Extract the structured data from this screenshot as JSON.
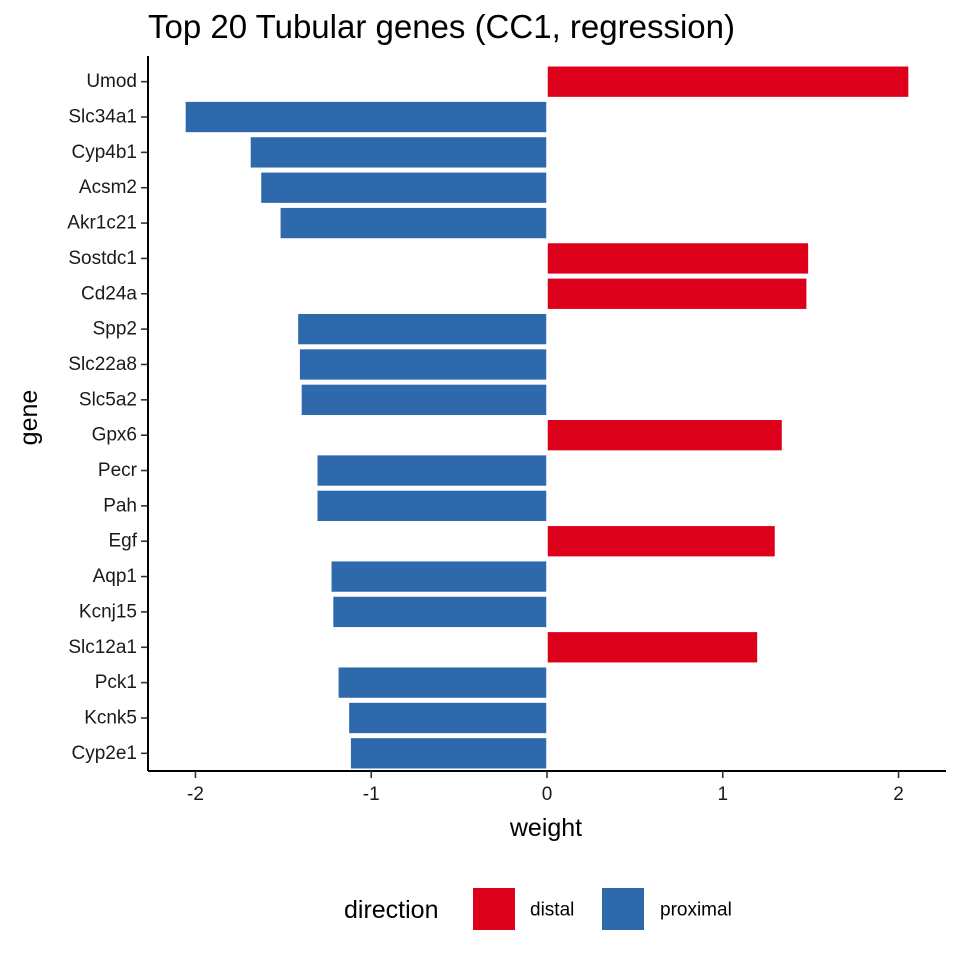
{
  "chart_data": {
    "type": "bar",
    "orientation": "horizontal",
    "title": "Top 20 Tubular genes (CC1, regression)",
    "xlabel": "weight",
    "ylabel": "gene",
    "xlim": [
      -2.27,
      2.27
    ],
    "xticks": [
      -2,
      -1,
      0,
      1,
      2
    ],
    "xtick_labels": [
      "-2",
      "-1",
      "0",
      "1",
      "2"
    ],
    "grid": false,
    "legend_position": "bottom",
    "legend_title": "direction",
    "legend": [
      {
        "key": "distal",
        "label": "distal",
        "color": "#DC001A"
      },
      {
        "key": "proximal",
        "label": "proximal",
        "color": "#2E6AAB"
      }
    ],
    "categories": [
      "Umod",
      "Slc34a1",
      "Cyp4b1",
      "Acsm2",
      "Akr1c21",
      "Sostdc1",
      "Cd24a",
      "Spp2",
      "Slc22a8",
      "Slc5a2",
      "Gpx6",
      "Pecr",
      "Pah",
      "Egf",
      "Aqp1",
      "Kcnj15",
      "Slc12a1",
      "Pck1",
      "Kcnk5",
      "Cyp2e1"
    ],
    "values": [
      2.06,
      -2.06,
      -1.69,
      -1.63,
      -1.52,
      1.49,
      1.48,
      -1.42,
      -1.41,
      -1.4,
      1.34,
      -1.31,
      -1.31,
      1.3,
      -1.23,
      -1.22,
      1.2,
      -1.19,
      -1.13,
      -1.12
    ],
    "directions": [
      "distal",
      "proximal",
      "proximal",
      "proximal",
      "proximal",
      "distal",
      "distal",
      "proximal",
      "proximal",
      "proximal",
      "distal",
      "proximal",
      "proximal",
      "distal",
      "proximal",
      "proximal",
      "distal",
      "proximal",
      "proximal",
      "proximal"
    ]
  }
}
